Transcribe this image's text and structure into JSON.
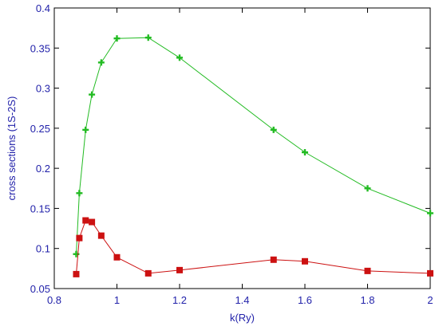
{
  "chart_data": {
    "type": "line",
    "title": "",
    "xlabel": "k(Ry)",
    "ylabel": "cross sections (1S-2S)",
    "xlim": [
      0.8,
      2.0
    ],
    "ylim": [
      0.05,
      0.4
    ],
    "x_ticks": [
      0.8,
      1.0,
      1.2,
      1.4,
      1.6,
      1.8,
      2.0
    ],
    "x_tick_labels": [
      "0.8",
      "1",
      "1.2",
      "1.4",
      "1.6",
      "1.8",
      "2"
    ],
    "y_ticks": [
      0.05,
      0.1,
      0.15,
      0.2,
      0.25,
      0.3,
      0.35,
      0.4
    ],
    "y_tick_labels": [
      "0.05",
      "0.1",
      "0.15",
      "0.2",
      "0.25",
      "0.3",
      "0.35",
      "0.4"
    ],
    "grid": false,
    "legend": "none",
    "series": [
      {
        "marker": "plus",
        "color": "#22bb22",
        "x": [
          0.87,
          0.88,
          0.9,
          0.92,
          0.95,
          1.0,
          1.1,
          1.2,
          1.5,
          1.6,
          1.8,
          2.0
        ],
        "y": [
          0.093,
          0.169,
          0.248,
          0.292,
          0.332,
          0.362,
          0.363,
          0.338,
          0.248,
          0.22,
          0.175,
          0.144
        ]
      },
      {
        "marker": "square",
        "color": "#cc1111",
        "x": [
          0.87,
          0.88,
          0.9,
          0.92,
          0.95,
          1.0,
          1.1,
          1.2,
          1.5,
          1.6,
          1.8,
          2.0
        ],
        "y": [
          0.068,
          0.113,
          0.135,
          0.133,
          0.116,
          0.089,
          0.069,
          0.073,
          0.086,
          0.084,
          0.072,
          0.069
        ]
      }
    ],
    "axis_color": "#000000",
    "label_color": "#2222aa"
  }
}
